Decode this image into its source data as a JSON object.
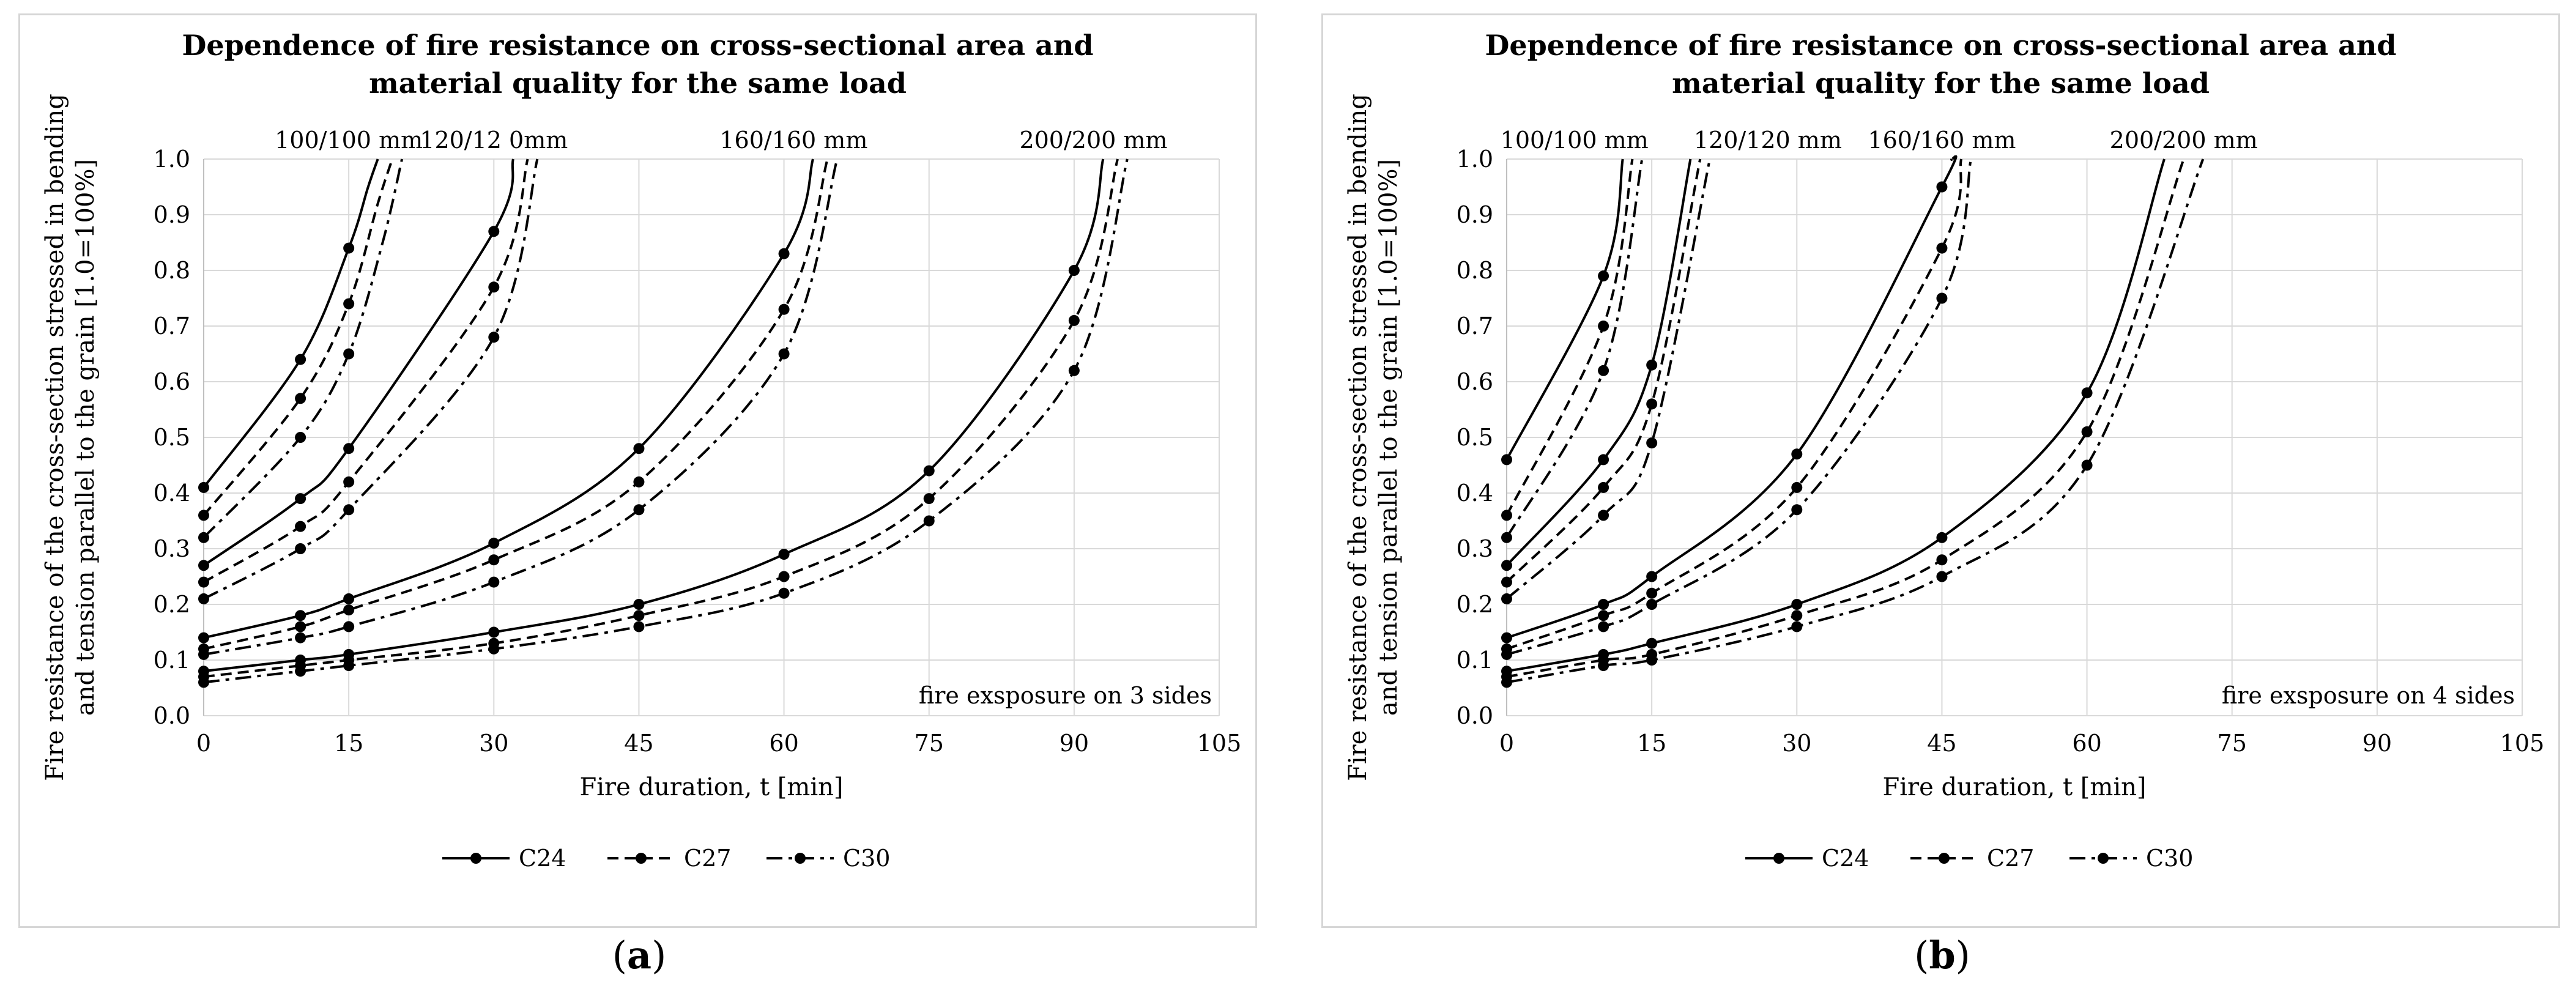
{
  "colors": {
    "grid": "#d9d9d9",
    "series": "#000000",
    "frame": "#d6d6d6"
  },
  "chart_data": [
    {
      "type": "line",
      "panel": "a",
      "caption": "a",
      "title_lines": [
        "Dependence of fire resistance on cross-sectional area and",
        "material quality for the same load"
      ],
      "xlabel": "Fire duration, t [min]",
      "ylabel_lines": [
        "Fire resistance of the cross-section stressed in bending",
        "and tension parallel to the grain [1.0=100%]"
      ],
      "xlim": [
        0,
        105
      ],
      "ylim": [
        0,
        1.0
      ],
      "xticks": [
        0,
        15,
        30,
        45,
        60,
        75,
        90,
        105
      ],
      "xtick_labels": [
        "0",
        "15",
        "30",
        "45",
        "60",
        "75",
        "90",
        "105"
      ],
      "yticks": [
        0,
        0.1,
        0.2,
        0.3,
        0.4,
        0.5,
        0.6,
        0.7,
        0.8,
        0.9,
        1.0
      ],
      "ytick_labels": [
        "0.0",
        "0.1",
        "0.2",
        "0.3",
        "0.4",
        "0.5",
        "0.6",
        "0.7",
        "0.8",
        "0.9",
        "1.0"
      ],
      "grid": true,
      "note": "fire exsposure on 3 sides",
      "legend": [
        "C24",
        "C27",
        "C30"
      ],
      "legend_position": "bottom",
      "section_labels": [
        {
          "text": "100/100 mm",
          "x": 15
        },
        {
          "text": "120/12 0mm",
          "x": 30
        },
        {
          "text": "160/160 mm",
          "x": 61
        },
        {
          "text": "200/200 mm",
          "x": 92
        }
      ],
      "series": [
        {
          "section": "100/100 mm",
          "grade": "C24",
          "style": "solid",
          "points": [
            [
              0,
              0.41
            ],
            [
              10,
              0.64
            ],
            [
              15,
              0.84
            ]
          ],
          "extend": [
            [
              17,
              0.95
            ],
            [
              18,
              1.0
            ]
          ]
        },
        {
          "section": "100/100 mm",
          "grade": "C27",
          "style": "dash",
          "points": [
            [
              0,
              0.36
            ],
            [
              10,
              0.57
            ],
            [
              15,
              0.74
            ]
          ],
          "extend": [
            [
              18,
              0.92
            ],
            [
              19.5,
              1.0
            ]
          ]
        },
        {
          "section": "100/100 mm",
          "grade": "C30",
          "style": "dashdot",
          "points": [
            [
              0,
              0.32
            ],
            [
              10,
              0.5
            ],
            [
              15,
              0.65
            ]
          ],
          "extend": [
            [
              18.5,
              0.85
            ],
            [
              20.5,
              1.0
            ]
          ]
        },
        {
          "section": "120/120 mm",
          "grade": "C24",
          "style": "solid",
          "points": [
            [
              0,
              0.27
            ],
            [
              10,
              0.39
            ],
            [
              15,
              0.48
            ],
            [
              30,
              0.87
            ]
          ],
          "extend": [
            [
              32,
              1.0
            ]
          ]
        },
        {
          "section": "120/120 mm",
          "grade": "C27",
          "style": "dash",
          "points": [
            [
              0,
              0.24
            ],
            [
              10,
              0.34
            ],
            [
              15,
              0.42
            ],
            [
              30,
              0.77
            ]
          ],
          "extend": [
            [
              33.5,
              1.0
            ]
          ]
        },
        {
          "section": "120/120 mm",
          "grade": "C30",
          "style": "dashdot",
          "points": [
            [
              0,
              0.21
            ],
            [
              10,
              0.3
            ],
            [
              15,
              0.37
            ],
            [
              30,
              0.68
            ]
          ],
          "extend": [
            [
              34.5,
              1.0
            ]
          ]
        },
        {
          "section": "160/160 mm",
          "grade": "C24",
          "style": "solid",
          "points": [
            [
              0,
              0.14
            ],
            [
              10,
              0.18
            ],
            [
              15,
              0.21
            ],
            [
              30,
              0.31
            ],
            [
              45,
              0.48
            ],
            [
              60,
              0.83
            ]
          ],
          "extend": [
            [
              63,
              1.0
            ]
          ]
        },
        {
          "section": "160/160 mm",
          "grade": "C27",
          "style": "dash",
          "points": [
            [
              0,
              0.12
            ],
            [
              10,
              0.16
            ],
            [
              15,
              0.19
            ],
            [
              30,
              0.28
            ],
            [
              45,
              0.42
            ],
            [
              60,
              0.73
            ]
          ],
          "extend": [
            [
              64.5,
              1.0
            ]
          ]
        },
        {
          "section": "160/160 mm",
          "grade": "C30",
          "style": "dashdot",
          "points": [
            [
              0,
              0.11
            ],
            [
              10,
              0.14
            ],
            [
              15,
              0.16
            ],
            [
              30,
              0.24
            ],
            [
              45,
              0.37
            ],
            [
              60,
              0.65
            ]
          ],
          "extend": [
            [
              65.5,
              1.0
            ]
          ]
        },
        {
          "section": "200/200 mm",
          "grade": "C24",
          "style": "solid",
          "points": [
            [
              0,
              0.08
            ],
            [
              10,
              0.1
            ],
            [
              15,
              0.11
            ],
            [
              30,
              0.15
            ],
            [
              45,
              0.2
            ],
            [
              60,
              0.29
            ],
            [
              75,
              0.44
            ],
            [
              90,
              0.8
            ]
          ],
          "extend": [
            [
              93,
              1.0
            ]
          ]
        },
        {
          "section": "200/200 mm",
          "grade": "C27",
          "style": "dash",
          "points": [
            [
              0,
              0.07
            ],
            [
              10,
              0.09
            ],
            [
              15,
              0.1
            ],
            [
              30,
              0.13
            ],
            [
              45,
              0.18
            ],
            [
              60,
              0.25
            ],
            [
              75,
              0.39
            ],
            [
              90,
              0.71
            ]
          ],
          "extend": [
            [
              94.5,
              1.0
            ]
          ]
        },
        {
          "section": "200/200 mm",
          "grade": "C30",
          "style": "dashdot",
          "points": [
            [
              0,
              0.06
            ],
            [
              10,
              0.08
            ],
            [
              15,
              0.09
            ],
            [
              30,
              0.12
            ],
            [
              45,
              0.16
            ],
            [
              60,
              0.22
            ],
            [
              75,
              0.35
            ],
            [
              90,
              0.62
            ]
          ],
          "extend": [
            [
              95.5,
              1.0
            ]
          ]
        }
      ]
    },
    {
      "type": "line",
      "panel": "b",
      "caption": "b",
      "title_lines": [
        "Dependence of fire resistance on cross-sectional area and",
        "material quality for the same load"
      ],
      "xlabel": "Fire duration, t [min]",
      "ylabel_lines": [
        "Fire resistance of the cross-section stressed in bending",
        "and tension parallel to the grain [1.0=100%]"
      ],
      "xlim": [
        0,
        105
      ],
      "ylim": [
        0,
        1.0
      ],
      "xticks": [
        0,
        15,
        30,
        45,
        60,
        75,
        90,
        105
      ],
      "xtick_labels": [
        "0",
        "15",
        "30",
        "45",
        "60",
        "75",
        "90",
        "105"
      ],
      "yticks": [
        0,
        0.1,
        0.2,
        0.3,
        0.4,
        0.5,
        0.6,
        0.7,
        0.8,
        0.9,
        1.0
      ],
      "ytick_labels": [
        "0.0",
        "0.1",
        "0.2",
        "0.3",
        "0.4",
        "0.5",
        "0.6",
        "0.7",
        "0.8",
        "0.9",
        "1.0"
      ],
      "grid": true,
      "note": "fire exsposure on 4 sides",
      "legend": [
        "C24",
        "C27",
        "C30"
      ],
      "legend_position": "bottom",
      "section_labels": [
        {
          "text": "100/100 mm",
          "x": 7
        },
        {
          "text": "120/120 mm",
          "x": 27
        },
        {
          "text": "160/160 mm",
          "x": 45
        },
        {
          "text": "200/200 mm",
          "x": 70
        }
      ],
      "series": [
        {
          "section": "100/100 mm",
          "grade": "C24",
          "style": "solid",
          "points": [
            [
              0,
              0.46
            ],
            [
              10,
              0.79
            ]
          ],
          "extend": [
            [
              12,
              1.0
            ]
          ]
        },
        {
          "section": "100/100 mm",
          "grade": "C27",
          "style": "dash",
          "points": [
            [
              0,
              0.36
            ],
            [
              10,
              0.7
            ]
          ],
          "extend": [
            [
              13,
              1.0
            ]
          ]
        },
        {
          "section": "100/100 mm",
          "grade": "C30",
          "style": "dashdot",
          "points": [
            [
              0,
              0.32
            ],
            [
              10,
              0.62
            ]
          ],
          "extend": [
            [
              14,
              1.0
            ]
          ]
        },
        {
          "section": "120/120 mm",
          "grade": "C24",
          "style": "solid",
          "points": [
            [
              0,
              0.27
            ],
            [
              10,
              0.46
            ],
            [
              15,
              0.63
            ]
          ],
          "extend": [
            [
              19,
              1.0
            ]
          ]
        },
        {
          "section": "120/120 mm",
          "grade": "C27",
          "style": "dash",
          "points": [
            [
              0,
              0.24
            ],
            [
              10,
              0.41
            ],
            [
              15,
              0.56
            ]
          ],
          "extend": [
            [
              20,
              1.0
            ]
          ]
        },
        {
          "section": "120/120 mm",
          "grade": "C30",
          "style": "dashdot",
          "points": [
            [
              0,
              0.21
            ],
            [
              10,
              0.36
            ],
            [
              15,
              0.49
            ]
          ],
          "extend": [
            [
              21,
              1.0
            ]
          ]
        },
        {
          "section": "160/160 mm",
          "grade": "C24",
          "style": "solid",
          "points": [
            [
              0,
              0.14
            ],
            [
              10,
              0.2
            ],
            [
              15,
              0.25
            ],
            [
              30,
              0.47
            ],
            [
              45,
              0.95
            ]
          ],
          "extend": [
            [
              46,
              1.0
            ]
          ]
        },
        {
          "section": "160/160 mm",
          "grade": "C27",
          "style": "dash",
          "points": [
            [
              0,
              0.12
            ],
            [
              10,
              0.18
            ],
            [
              15,
              0.22
            ],
            [
              30,
              0.41
            ],
            [
              45,
              0.84
            ]
          ],
          "extend": [
            [
              47,
              1.0
            ]
          ]
        },
        {
          "section": "160/160 mm",
          "grade": "C30",
          "style": "dashdot",
          "points": [
            [
              0,
              0.11
            ],
            [
              10,
              0.16
            ],
            [
              15,
              0.2
            ],
            [
              30,
              0.37
            ],
            [
              45,
              0.75
            ]
          ],
          "extend": [
            [
              48,
              1.0
            ]
          ]
        },
        {
          "section": "200/200 mm",
          "grade": "C24",
          "style": "solid",
          "points": [
            [
              0,
              0.08
            ],
            [
              10,
              0.11
            ],
            [
              15,
              0.13
            ],
            [
              30,
              0.2
            ],
            [
              45,
              0.32
            ],
            [
              60,
              0.58
            ]
          ],
          "extend": [
            [
              68,
              1.0
            ]
          ]
        },
        {
          "section": "200/200 mm",
          "grade": "C27",
          "style": "dash",
          "points": [
            [
              0,
              0.07
            ],
            [
              10,
              0.1
            ],
            [
              15,
              0.11
            ],
            [
              30,
              0.18
            ],
            [
              45,
              0.28
            ],
            [
              60,
              0.51
            ]
          ],
          "extend": [
            [
              70,
              1.0
            ]
          ]
        },
        {
          "section": "200/200 mm",
          "grade": "C30",
          "style": "dashdot",
          "points": [
            [
              0,
              0.06
            ],
            [
              10,
              0.09
            ],
            [
              15,
              0.1
            ],
            [
              30,
              0.16
            ],
            [
              45,
              0.25
            ],
            [
              60,
              0.45
            ]
          ],
          "extend": [
            [
              72,
              1.0
            ]
          ]
        }
      ]
    }
  ]
}
